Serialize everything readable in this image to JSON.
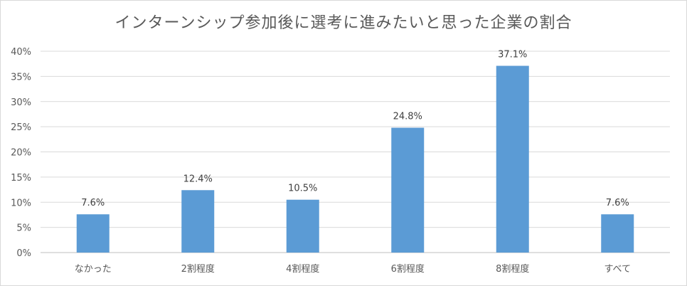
{
  "chart_data": {
    "type": "bar",
    "title": "インターンシップ参加後に選考に進みたいと思った企業の割合",
    "categories": [
      "なかった",
      "2割程度",
      "4割程度",
      "6割程度",
      "8割程度",
      "すべて"
    ],
    "values": [
      7.6,
      12.4,
      10.5,
      24.8,
      37.1,
      7.6
    ],
    "data_labels": [
      "7.6%",
      "12.4%",
      "10.5%",
      "24.8%",
      "37.1%",
      "7.6%"
    ],
    "xlabel": "",
    "ylabel": "",
    "ylim": [
      0,
      40
    ],
    "y_ticks": [
      "0%",
      "5%",
      "10%",
      "15%",
      "20%",
      "25%",
      "30%",
      "35%",
      "40%"
    ],
    "grid": true,
    "legend": "none",
    "colors": {
      "bar": "#5b9bd5",
      "grid": "#d9d9d9",
      "text": "#595959"
    }
  }
}
